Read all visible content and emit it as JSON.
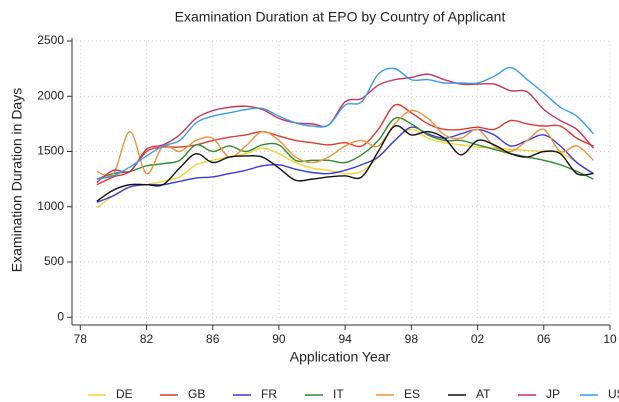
{
  "chart_data": {
    "type": "line",
    "title": "Examination Duration at EPO by Country of Applicant",
    "x_label": "Application Year",
    "y_label": "Examination Duration in Days",
    "x": [
      1979,
      1980,
      1981,
      1982,
      1983,
      1984,
      1985,
      1986,
      1987,
      1988,
      1989,
      1990,
      1991,
      1992,
      1993,
      1994,
      1995,
      1996,
      1997,
      1998,
      1999,
      2000,
      2001,
      2002,
      2003,
      2004,
      2005,
      2006,
      2007,
      2008,
      2009
    ],
    "xlim": [
      1977.5,
      2010
    ],
    "xticks": [
      {
        "value": 1978,
        "label": "78"
      },
      {
        "value": 1982,
        "label": "82"
      },
      {
        "value": 1986,
        "label": "86"
      },
      {
        "value": 1990,
        "label": "90"
      },
      {
        "value": 1994,
        "label": "94"
      },
      {
        "value": 1998,
        "label": "98"
      },
      {
        "value": 2002,
        "label": "02"
      },
      {
        "value": 2006,
        "label": "06"
      },
      {
        "value": 2010,
        "label": "10"
      }
    ],
    "ylim": [
      -70,
      2500
    ],
    "yticks": [
      0,
      500,
      1000,
      1500,
      2000,
      2500
    ],
    "grid": true,
    "legend": "bottom",
    "series": [
      {
        "name": "DE",
        "color": "#f2d530",
        "values": [
          990,
          1100,
          1180,
          1200,
          1230,
          1270,
          1380,
          1420,
          1450,
          1480,
          1530,
          1480,
          1400,
          1350,
          1330,
          1300,
          1320,
          1450,
          1600,
          1700,
          1620,
          1580,
          1560,
          1540,
          1530,
          1520,
          1510,
          1500,
          1490,
          1400,
          1300
        ]
      },
      {
        "name": "GB",
        "color": "#e03a2f",
        "values": [
          1200,
          1270,
          1320,
          1500,
          1540,
          1540,
          1560,
          1600,
          1630,
          1650,
          1680,
          1640,
          1600,
          1580,
          1560,
          1580,
          1550,
          1700,
          1920,
          1850,
          1750,
          1700,
          1700,
          1720,
          1700,
          1780,
          1750,
          1730,
          1730,
          1620,
          1550
        ]
      },
      {
        "name": "FR",
        "color": "#3a3adb",
        "values": [
          1040,
          1100,
          1180,
          1200,
          1200,
          1230,
          1260,
          1270,
          1300,
          1330,
          1370,
          1380,
          1340,
          1310,
          1300,
          1330,
          1380,
          1450,
          1600,
          1720,
          1660,
          1620,
          1660,
          1700,
          1650,
          1550,
          1600,
          1650,
          1550,
          1400,
          1300
        ]
      },
      {
        "name": "IT",
        "color": "#2e8b2e",
        "values": [
          1250,
          1300,
          1320,
          1370,
          1390,
          1420,
          1560,
          1500,
          1550,
          1500,
          1560,
          1560,
          1420,
          1420,
          1420,
          1400,
          1470,
          1600,
          1800,
          1750,
          1650,
          1600,
          1600,
          1560,
          1520,
          1480,
          1450,
          1420,
          1380,
          1320,
          1250
        ]
      },
      {
        "name": "ES",
        "color": "#e8953a",
        "values": [
          1320,
          1300,
          1680,
          1300,
          1550,
          1500,
          1600,
          1620,
          1450,
          1550,
          1680,
          1600,
          1450,
          1400,
          1450,
          1550,
          1600,
          1550,
          1750,
          1870,
          1800,
          1650,
          1620,
          1700,
          1550,
          1500,
          1600,
          1700,
          1500,
          1550,
          1420
        ]
      },
      {
        "name": "AT",
        "color": "#111111",
        "values": [
          1050,
          1150,
          1200,
          1200,
          1200,
          1350,
          1480,
          1400,
          1450,
          1460,
          1450,
          1350,
          1240,
          1250,
          1270,
          1280,
          1270,
          1500,
          1730,
          1650,
          1680,
          1620,
          1470,
          1600,
          1560,
          1480,
          1450,
          1500,
          1480,
          1300,
          1300
        ]
      },
      {
        "name": "JP",
        "color": "#c8325a",
        "values": [
          1220,
          1330,
          1320,
          1520,
          1560,
          1650,
          1800,
          1870,
          1900,
          1910,
          1880,
          1800,
          1760,
          1750,
          1740,
          1950,
          1980,
          2100,
          2150,
          2170,
          2200,
          2150,
          2110,
          2110,
          2110,
          2050,
          2040,
          1880,
          1780,
          1700,
          1530
        ]
      },
      {
        "name": "US",
        "color": "#3a9ee6",
        "values": [
          1250,
          1280,
          1360,
          1460,
          1550,
          1600,
          1760,
          1820,
          1850,
          1880,
          1890,
          1820,
          1760,
          1730,
          1740,
          1920,
          1950,
          2200,
          2250,
          2150,
          2150,
          2120,
          2120,
          2120,
          2180,
          2260,
          2150,
          2030,
          1900,
          1820,
          1660
        ]
      }
    ]
  }
}
